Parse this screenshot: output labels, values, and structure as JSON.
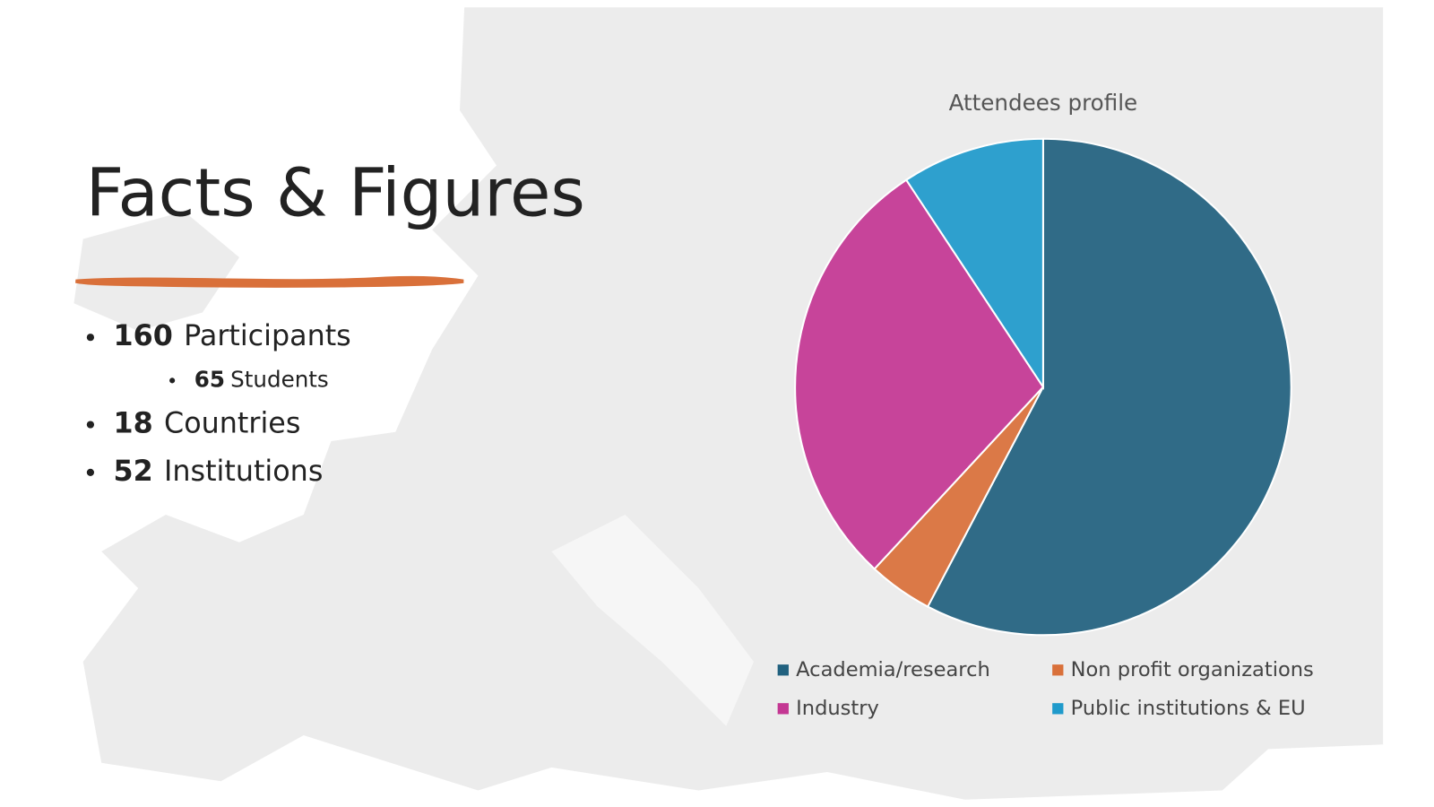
{
  "slide": {
    "title": "Facts & Figures",
    "bullets": [
      {
        "number": 160,
        "label": "Participants",
        "level": 1
      },
      {
        "number": 65,
        "label": "Students",
        "level": 2
      },
      {
        "number": 18,
        "label": "Countries",
        "level": 1
      },
      {
        "number": 52,
        "label": "Institutions",
        "level": 1
      }
    ]
  },
  "chart_data": {
    "type": "pie",
    "title": "Attendees profile",
    "categories": [
      "Academia/research",
      "Non profit organizations",
      "Industry",
      "Public institutions & EU"
    ],
    "values": [
      57.7,
      4.2,
      28.8,
      9.3
    ],
    "colors": [
      "#21617f",
      "#d9703a",
      "#c43793",
      "#1f9acb"
    ],
    "start_angle": 0,
    "direction": "clockwise"
  }
}
